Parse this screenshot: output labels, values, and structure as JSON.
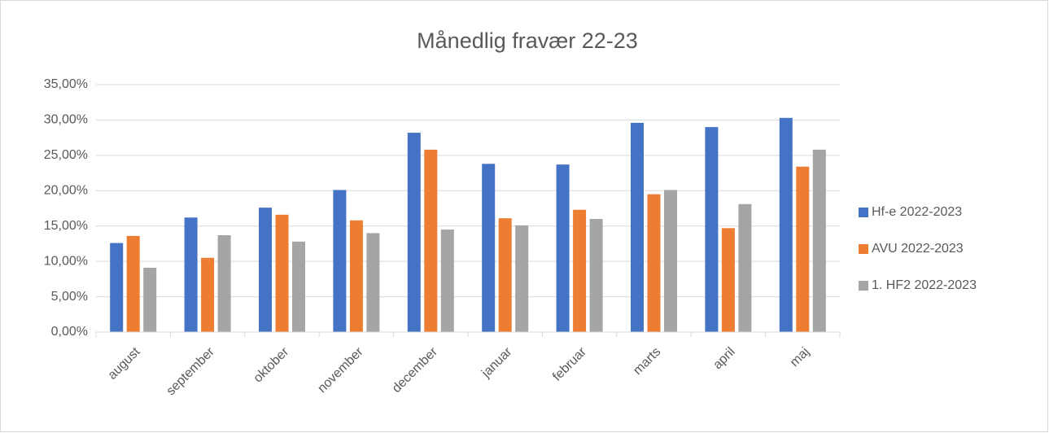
{
  "chart_data": {
    "type": "bar",
    "title": "Månedlig fravær 22-23",
    "categories": [
      "august",
      "september",
      "oktober",
      "november",
      "december",
      "januar",
      "februar",
      "marts",
      "april",
      "maj"
    ],
    "series": [
      {
        "name": "Hf-e 2022-2023",
        "color": "#4472c4",
        "values": [
          12.6,
          16.2,
          17.6,
          20.1,
          28.2,
          23.8,
          23.7,
          29.6,
          29.0,
          30.3
        ]
      },
      {
        "name": "AVU 2022-2023",
        "color": "#ed7d31",
        "values": [
          13.6,
          10.5,
          16.6,
          15.8,
          25.8,
          16.1,
          17.3,
          19.5,
          14.7,
          23.4
        ]
      },
      {
        "name": "1. HF2 2022-2023",
        "color": "#a5a5a5",
        "values": [
          9.1,
          13.7,
          12.8,
          14.0,
          14.5,
          15.1,
          16.0,
          20.1,
          18.1,
          25.8
        ]
      }
    ],
    "ylim": [
      0,
      35
    ],
    "yticks": [
      {
        "value": 0,
        "label": "0,00%"
      },
      {
        "value": 5,
        "label": "5,00%"
      },
      {
        "value": 10,
        "label": "10,00%"
      },
      {
        "value": 15,
        "label": "15,00%"
      },
      {
        "value": 20,
        "label": "20,00%"
      },
      {
        "value": 25,
        "label": "25,00%"
      },
      {
        "value": 30,
        "label": "30,00%"
      },
      {
        "value": 35,
        "label": "35,00%"
      }
    ],
    "grid": true,
    "legend": "right"
  }
}
